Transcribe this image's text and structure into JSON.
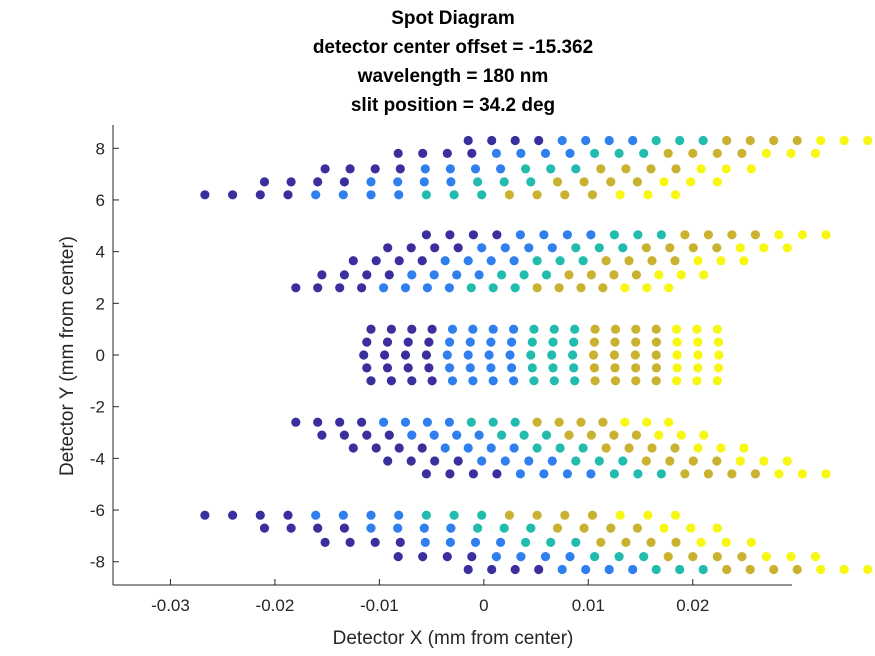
{
  "chart_data": {
    "type": "scatter",
    "title_lines": [
      "Spot Diagram",
      "detector center offset = -15.362",
      "wavelength = 180 nm",
      "slit position = 34.2 deg"
    ],
    "xlabel": "Detector X (mm from center)",
    "ylabel": "Detector Y (mm from center)",
    "xlim": [
      -0.0355,
      0.0295
    ],
    "ylim": [
      -8.9,
      8.9
    ],
    "xticks": [
      -0.03,
      -0.02,
      -0.01,
      0,
      0.01,
      0.02
    ],
    "xtick_labels": [
      "-0.03",
      "-0.02",
      "-0.01",
      "0",
      "0.01",
      "0.02"
    ],
    "yticks": [
      -8,
      -6,
      -4,
      -2,
      0,
      2,
      4,
      6,
      8
    ],
    "ytick_labels": [
      "-8",
      "-6",
      "-4",
      "-2",
      "0",
      "2",
      "4",
      "6",
      "8"
    ],
    "colors": [
      "#3b2f9e",
      "#2f7fef",
      "#22bcae",
      "#c9b230",
      "#f7f711"
    ],
    "groups": [
      {
        "rows": [
          {
            "y": 8.3,
            "x0": -0.0015,
            "step": 0.00225,
            "count": 18
          },
          {
            "y": 7.8,
            "x0": -0.0082,
            "step": 0.00235,
            "count": 18
          },
          {
            "y": 7.2,
            "x0": -0.0152,
            "step": 0.0024,
            "count": 18
          },
          {
            "y": 6.7,
            "x0": -0.021,
            "step": 0.00255,
            "count": 18
          },
          {
            "y": 6.2,
            "x0": -0.0267,
            "step": 0.00265,
            "count": 18
          }
        ]
      },
      {
        "rows": [
          {
            "y": 4.65,
            "x0": -0.0055,
            "step": 0.00225,
            "count": 18
          },
          {
            "y": 4.15,
            "x0": -0.0092,
            "step": 0.00225,
            "count": 18
          },
          {
            "y": 3.65,
            "x0": -0.0125,
            "step": 0.0022,
            "count": 18
          },
          {
            "y": 3.1,
            "x0": -0.0155,
            "step": 0.00215,
            "count": 18
          },
          {
            "y": 2.6,
            "x0": -0.018,
            "step": 0.0021,
            "count": 18
          }
        ]
      },
      {
        "rows": [
          {
            "y": 1.0,
            "x0": -0.0108,
            "step": 0.00195,
            "count": 18
          },
          {
            "y": 0.5,
            "x0": -0.0112,
            "step": 0.00198,
            "count": 18
          },
          {
            "y": 0.0,
            "x0": -0.0115,
            "step": 0.002,
            "count": 18
          },
          {
            "y": -0.5,
            "x0": -0.0112,
            "step": 0.00198,
            "count": 18
          },
          {
            "y": -1.0,
            "x0": -0.0108,
            "step": 0.00195,
            "count": 18
          }
        ]
      },
      {
        "rows": [
          {
            "y": -2.6,
            "x0": -0.018,
            "step": 0.0021,
            "count": 18
          },
          {
            "y": -3.1,
            "x0": -0.0155,
            "step": 0.00215,
            "count": 18
          },
          {
            "y": -3.6,
            "x0": -0.0125,
            "step": 0.0022,
            "count": 18
          },
          {
            "y": -4.1,
            "x0": -0.0092,
            "step": 0.00225,
            "count": 18
          },
          {
            "y": -4.6,
            "x0": -0.0055,
            "step": 0.00225,
            "count": 18
          }
        ]
      },
      {
        "rows": [
          {
            "y": -6.2,
            "x0": -0.0267,
            "step": 0.00265,
            "count": 18
          },
          {
            "y": -6.7,
            "x0": -0.021,
            "step": 0.00255,
            "count": 18
          },
          {
            "y": -7.25,
            "x0": -0.0152,
            "step": 0.0024,
            "count": 18
          },
          {
            "y": -7.8,
            "x0": -0.0082,
            "step": 0.00235,
            "count": 18
          },
          {
            "y": -8.3,
            "x0": -0.0015,
            "step": 0.00225,
            "count": 18
          }
        ]
      }
    ]
  }
}
